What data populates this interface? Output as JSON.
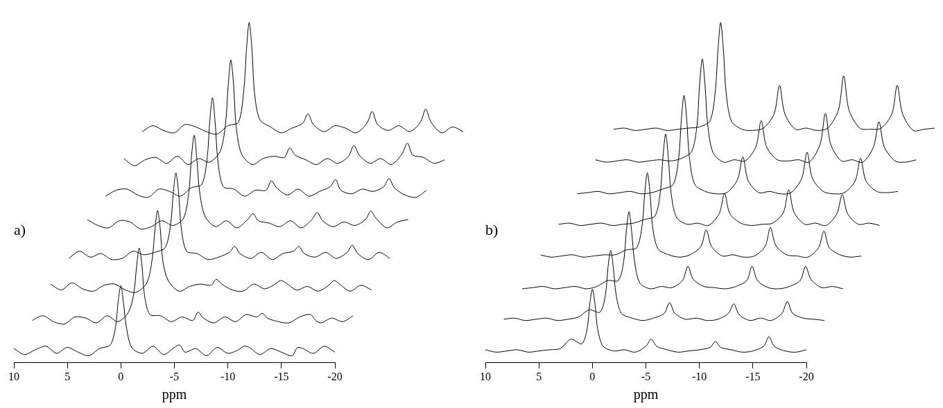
{
  "chart_data": [
    {
      "type": "line",
      "title": "a)",
      "xlabel": "ppm",
      "color": "#000000",
      "grid": false,
      "tick_labels": "x",
      "xlim": [
        10,
        -20
      ],
      "xticks": [
        10,
        5,
        0,
        -5,
        -10,
        -15,
        -20
      ],
      "x": [
        10,
        9,
        8,
        7,
        6,
        5,
        4,
        3,
        2,
        1,
        0.5,
        0.25,
        0,
        -0.25,
        -0.5,
        -1,
        -2,
        -3,
        -4,
        -5,
        -5.5,
        -6,
        -7,
        -8,
        -9,
        -10,
        -11,
        -11.5,
        -12,
        -13,
        -14,
        -15,
        -16,
        -16.5,
        -17,
        -18,
        -19,
        -20
      ],
      "series": [
        {
          "values": [
            2,
            -3,
            1,
            4,
            -2,
            3,
            -1,
            -4,
            2,
            5,
            20,
            42,
            55,
            40,
            21,
            3,
            -2,
            4,
            -3,
            3,
            5,
            -1,
            2,
            -4,
            3,
            -2,
            1,
            4,
            3,
            -3,
            2,
            -1,
            -4,
            3,
            2,
            -2,
            4,
            -1
          ]
        },
        {
          "values": [
            -1,
            3,
            -2,
            -4,
            2,
            1,
            -3,
            3,
            -2,
            6,
            22,
            44,
            60,
            46,
            20,
            4,
            3,
            -2,
            2,
            -1,
            6,
            1,
            -3,
            2,
            -2,
            4,
            2,
            5,
            1,
            -2,
            -3,
            2,
            4,
            -1,
            -3,
            1,
            -2,
            3
          ]
        },
        {
          "values": [
            3,
            -2,
            4,
            -1,
            -3,
            2,
            3,
            -2,
            -4,
            4,
            24,
            48,
            65,
            50,
            22,
            6,
            -3,
            1,
            3,
            2,
            7,
            3,
            -2,
            -3,
            3,
            -1,
            3,
            6,
            4,
            -2,
            1,
            -3,
            2,
            6,
            3,
            -3,
            2,
            -2
          ]
        },
        {
          "values": [
            -2,
            4,
            -1,
            2,
            -3,
            -2,
            4,
            1,
            3,
            7,
            26,
            52,
            70,
            54,
            24,
            4,
            2,
            -3,
            -1,
            3,
            8,
            2,
            -2,
            3,
            -3,
            2,
            4,
            8,
            2,
            -1,
            3,
            -2,
            3,
            9,
            2,
            -3,
            3,
            -2
          ]
        },
        {
          "values": [
            4,
            -1,
            -3,
            3,
            2,
            -4,
            -2,
            3,
            -1,
            5,
            27,
            57,
            75,
            55,
            28,
            7,
            -2,
            3,
            -3,
            4,
            9,
            3,
            1,
            -2,
            3,
            -3,
            4,
            10,
            3,
            -2,
            2,
            -1,
            4,
            11,
            5,
            -3,
            2,
            4
          ]
        },
        {
          "values": [
            -3,
            2,
            3,
            -2,
            -4,
            3,
            1,
            -3,
            4,
            7,
            29,
            61,
            80,
            59,
            27,
            5,
            3,
            -3,
            2,
            2,
            10,
            4,
            -2,
            3,
            -3,
            1,
            5,
            11,
            2,
            -1,
            3,
            1,
            5,
            12,
            4,
            -2,
            -4,
            2
          ]
        },
        {
          "values": [
            2,
            -4,
            1,
            3,
            -2,
            4,
            -3,
            2,
            -1,
            8,
            31,
            63,
            85,
            65,
            29,
            6,
            -3,
            2,
            4,
            3,
            11,
            5,
            1,
            -3,
            2,
            -2,
            4,
            13,
            5,
            -2,
            2,
            -3,
            6,
            15,
            5,
            3,
            -2,
            1
          ]
        },
        {
          "values": [
            -2,
            3,
            -1,
            -3,
            4,
            2,
            -2,
            -4,
            3,
            6,
            33,
            67,
            90,
            69,
            31,
            8,
            2,
            -3,
            1,
            5,
            13,
            4,
            -2,
            3,
            1,
            -3,
            5,
            15,
            4,
            -1,
            3,
            -2,
            6,
            17,
            6,
            -3,
            2,
            -2
          ]
        }
      ]
    },
    {
      "type": "line",
      "title": "b)",
      "xlabel": "ppm",
      "color": "#000000",
      "grid": false,
      "tick_labels": "x",
      "xlim": [
        10,
        -20
      ],
      "xticks": [
        10,
        5,
        0,
        -5,
        -10,
        -15,
        -20
      ],
      "x": [
        10,
        9,
        8,
        7,
        6,
        5,
        4,
        3,
        2,
        1,
        0.5,
        0.25,
        0,
        -0.25,
        -0.5,
        -1,
        -2,
        -3,
        -4,
        -5,
        -5.5,
        -6,
        -7,
        -8,
        -9,
        -10,
        -11,
        -11.5,
        -12,
        -13,
        -14,
        -15,
        -16,
        -16.5,
        -17,
        -18,
        -19,
        -20
      ],
      "series": [
        {
          "values": [
            1,
            -1,
            0,
            1,
            -1,
            0,
            1,
            2,
            10,
            6,
            18,
            39,
            52,
            39,
            18,
            4,
            0,
            1,
            -1,
            4,
            10,
            4,
            1,
            -1,
            0,
            1,
            3,
            8,
            3,
            1,
            -1,
            0,
            4,
            12,
            4,
            0,
            -1,
            1
          ]
        },
        {
          "values": [
            0,
            1,
            -1,
            0,
            1,
            -1,
            0,
            2,
            8,
            6,
            20,
            44,
            58,
            43,
            21,
            5,
            1,
            -1,
            1,
            5,
            14,
            5,
            0,
            1,
            -1,
            0,
            5,
            13,
            4,
            -1,
            1,
            -1,
            5,
            15,
            5,
            1,
            0,
            -1
          ]
        },
        {
          "values": [
            -1,
            0,
            1,
            -1,
            0,
            1,
            -1,
            1,
            6,
            6,
            22,
            48,
            64,
            47,
            23,
            4,
            -1,
            1,
            0,
            6,
            18,
            7,
            1,
            0,
            -1,
            1,
            6,
            18,
            6,
            0,
            -1,
            1,
            6,
            18,
            7,
            0,
            1,
            -1
          ]
        },
        {
          "values": [
            1,
            -1,
            0,
            1,
            -1,
            0,
            1,
            1,
            5,
            7,
            25,
            52,
            70,
            53,
            24,
            6,
            1,
            -1,
            1,
            8,
            22,
            8,
            0,
            1,
            -1,
            0,
            8,
            24,
            9,
            1,
            0,
            -1,
            7,
            21,
            7,
            1,
            -1,
            0
          ]
        },
        {
          "values": [
            0,
            1,
            -1,
            0,
            1,
            -1,
            0,
            1,
            4,
            7,
            27,
            57,
            76,
            56,
            27,
            6,
            0,
            1,
            -1,
            9,
            26,
            9,
            1,
            -1,
            0,
            1,
            10,
            29,
            10,
            0,
            1,
            -1,
            9,
            25,
            9,
            0,
            1,
            -1
          ]
        },
        {
          "values": [
            -1,
            0,
            1,
            -1,
            0,
            1,
            -1,
            0,
            3,
            7,
            29,
            61,
            82,
            62,
            30,
            7,
            1,
            -1,
            0,
            11,
            30,
            10,
            0,
            1,
            -1,
            0,
            12,
            34,
            12,
            1,
            -1,
            0,
            10,
            29,
            10,
            1,
            0,
            1
          ]
        },
        {
          "values": [
            1,
            -1,
            0,
            1,
            -1,
            0,
            1,
            0,
            2,
            8,
            30,
            65,
            86,
            64,
            31,
            7,
            -1,
            1,
            0,
            12,
            34,
            12,
            1,
            0,
            1,
            -1,
            14,
            40,
            14,
            0,
            1,
            -1,
            12,
            33,
            12,
            0,
            -1,
            1
          ]
        },
        {
          "values": [
            0,
            1,
            -1,
            0,
            1,
            -1,
            0,
            1,
            2,
            7,
            32,
            67,
            90,
            68,
            32,
            7,
            0,
            -1,
            1,
            13,
            37,
            13,
            0,
            1,
            -1,
            1,
            16,
            45,
            16,
            1,
            0,
            1,
            13,
            37,
            13,
            -1,
            0,
            1
          ]
        }
      ]
    }
  ]
}
